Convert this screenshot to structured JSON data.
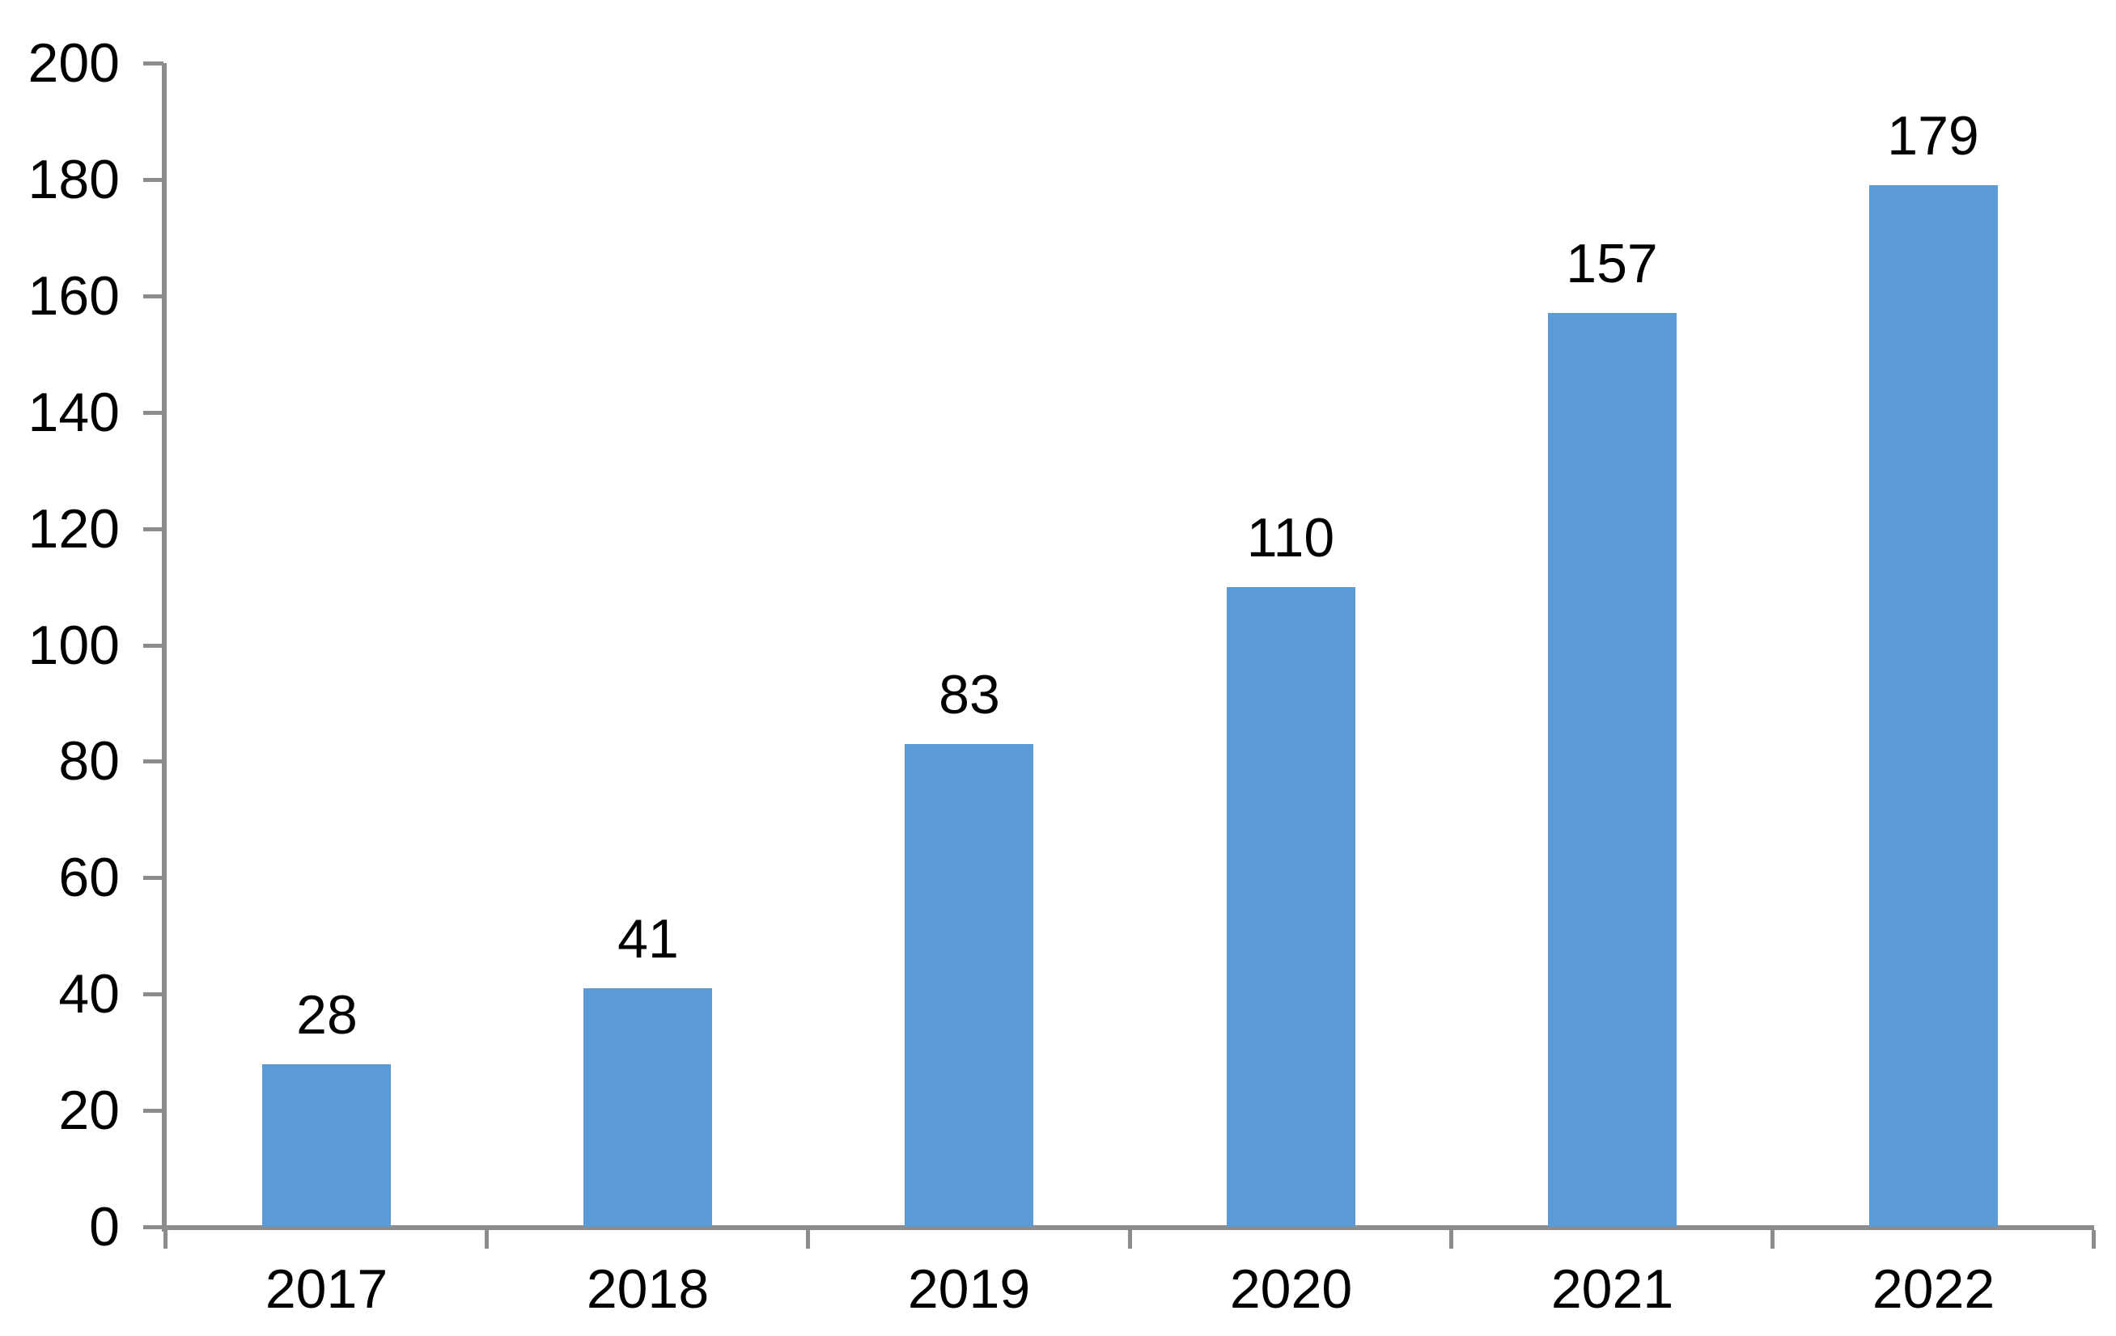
{
  "chart_data": {
    "type": "bar",
    "title": "",
    "xlabel": "",
    "ylabel": "",
    "categories": [
      "2017",
      "2018",
      "2019",
      "2020",
      "2021",
      "2022"
    ],
    "values": [
      28,
      41,
      83,
      110,
      157,
      179
    ],
    "series_name": "",
    "ylim": [
      0,
      200
    ],
    "ytick_step": 20,
    "yticks": [
      0,
      20,
      40,
      60,
      80,
      100,
      120,
      140,
      160,
      180,
      200
    ],
    "grid": false,
    "legend_position": "none",
    "data_labels_shown": true,
    "colors": {
      "bar_fill": "#5B9BD5",
      "axis": "#8C8C8C",
      "text": "#000000",
      "background": "#FFFFFF"
    }
  }
}
